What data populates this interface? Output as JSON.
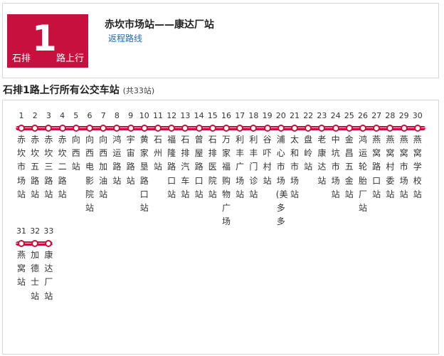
{
  "header": {
    "badge_prefix": "石排",
    "badge_number": "1",
    "badge_suffix": "路上行",
    "route_title": "赤坎市场站——康达厂站",
    "return_link": "返程路线"
  },
  "section": {
    "title": "石排1路上行所有公交车站",
    "count": "(共33站)"
  },
  "colors": {
    "accent": "#c8103e",
    "link": "#1a6bc7"
  },
  "stops": [
    {
      "num": "1",
      "name": "赤坎市场站"
    },
    {
      "num": "2",
      "name": "赤坎五路站"
    },
    {
      "num": "3",
      "name": "赤坎三路站"
    },
    {
      "num": "4",
      "name": "赤坎二路站"
    },
    {
      "num": "5",
      "name": "向西站"
    },
    {
      "num": "6",
      "name": "向西电影院站"
    },
    {
      "num": "7",
      "name": "向西加油站"
    },
    {
      "num": "8",
      "name": "鸿运路站"
    },
    {
      "num": "9",
      "name": "宇宙路站"
    },
    {
      "num": "10",
      "name": "黄家垦路口站"
    },
    {
      "num": "11",
      "name": "石州站"
    },
    {
      "num": "12",
      "name": "福隆路口站"
    },
    {
      "num": "13",
      "name": "石排汽车站"
    },
    {
      "num": "14",
      "name": "曾屋路口站"
    },
    {
      "num": "15",
      "name": "石排医院站"
    },
    {
      "num": "16",
      "name": "万家福购物广场"
    },
    {
      "num": "17",
      "name": "利丰广场站"
    },
    {
      "num": "18",
      "name": "利丰门诊站"
    },
    {
      "num": "19",
      "name": "谷吓村站"
    },
    {
      "num": "20",
      "name": "浦心市场(美多多"
    },
    {
      "num": "21",
      "name": "太和市场站"
    },
    {
      "num": "22",
      "name": "盘岭站"
    },
    {
      "num": "23",
      "name": "老康达站"
    },
    {
      "num": "24",
      "name": "中坑市场站"
    },
    {
      "num": "25",
      "name": "金昌五金站"
    },
    {
      "num": "26",
      "name": "鸿运轮胎厂站"
    },
    {
      "num": "27",
      "name": "燕窝路口站"
    },
    {
      "num": "28",
      "name": "燕窝村委站"
    },
    {
      "num": "29",
      "name": "燕窝市场站"
    },
    {
      "num": "30",
      "name": "燕窝学校站"
    },
    {
      "num": "31",
      "name": "燕窝站"
    },
    {
      "num": "32",
      "name": "加德士站"
    },
    {
      "num": "33",
      "name": "康达厂站"
    }
  ]
}
